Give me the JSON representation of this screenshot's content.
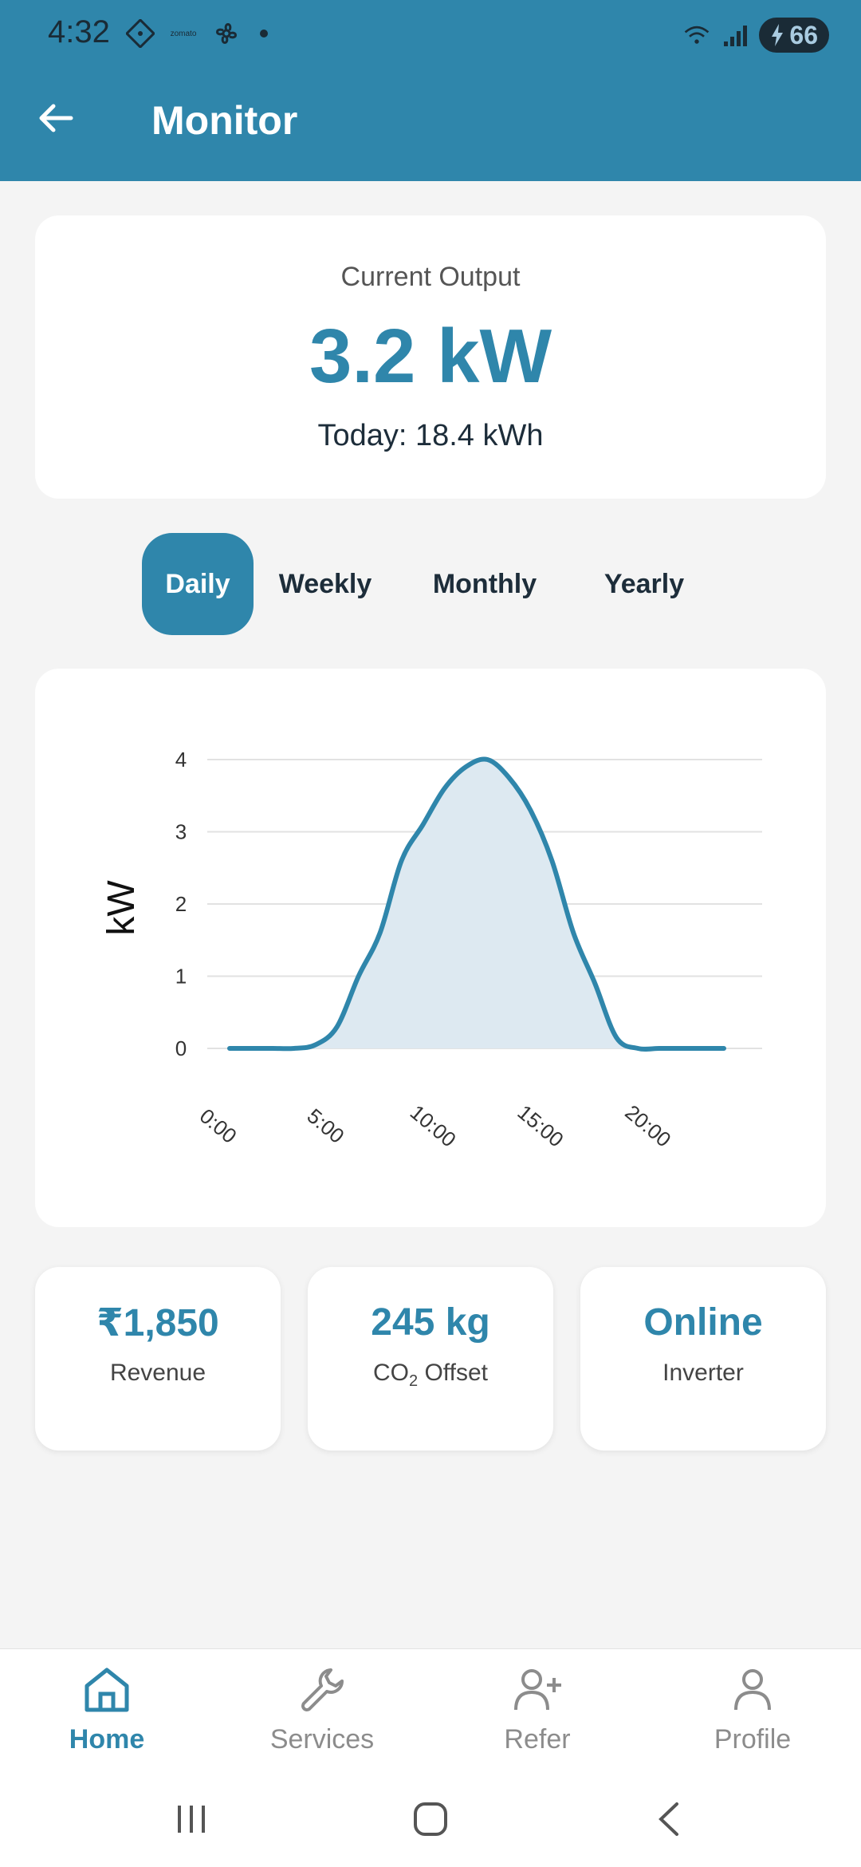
{
  "status_bar": {
    "time": "4:32",
    "battery": "66",
    "icons": [
      "zomato-app-icon",
      "fan-app-icon",
      "wifi-icon",
      "signal-icon",
      "battery-icon"
    ]
  },
  "app_bar": {
    "title": "Monitor"
  },
  "output": {
    "label": "Current Output",
    "value": "3.2 kW",
    "today": "Today: 18.4 kWh"
  },
  "tabs": [
    {
      "label": "Daily",
      "active": true
    },
    {
      "label": "Weekly",
      "active": false
    },
    {
      "label": "Monthly",
      "active": false
    },
    {
      "label": "Yearly",
      "active": false
    }
  ],
  "chart_data": {
    "type": "area",
    "ylabel": "kW",
    "xlabel": "",
    "ylim": [
      0,
      4
    ],
    "y_ticks": [
      "0",
      "1",
      "2",
      "3",
      "4"
    ],
    "x_ticks": [
      "0:00",
      "5:00",
      "10:00",
      "15:00",
      "20:00"
    ],
    "x_tick_values": [
      0,
      5,
      10,
      15,
      20
    ],
    "xlim": [
      0,
      23
    ],
    "grid": true,
    "colors": {
      "line": "#2f86ab",
      "fill": "#dde9f1"
    },
    "x": [
      0,
      1,
      2,
      3,
      4,
      5,
      6,
      7,
      8,
      9,
      10,
      11,
      12,
      13,
      14,
      15,
      16,
      17,
      18,
      19,
      20,
      21,
      22,
      23
    ],
    "values": [
      0,
      0,
      0,
      0,
      0.05,
      0.3,
      1.0,
      1.6,
      2.6,
      3.1,
      3.6,
      3.9,
      4.0,
      3.75,
      3.3,
      2.6,
      1.6,
      0.9,
      0.15,
      0,
      0,
      0,
      0,
      0
    ]
  },
  "stats": [
    {
      "value": "₹1,850",
      "label": "Revenue"
    },
    {
      "value": "245 kg",
      "label_main": "CO",
      "label_sub": "2",
      "label_rest": " Offset"
    },
    {
      "value": "Online",
      "label": "Inverter"
    }
  ],
  "nav": [
    {
      "label": "Home",
      "icon": "home-icon",
      "active": true
    },
    {
      "label": "Services",
      "icon": "wrench-icon",
      "active": false
    },
    {
      "label": "Refer",
      "icon": "add-user-icon",
      "active": false
    },
    {
      "label": "Profile",
      "icon": "profile-icon",
      "active": false
    }
  ]
}
